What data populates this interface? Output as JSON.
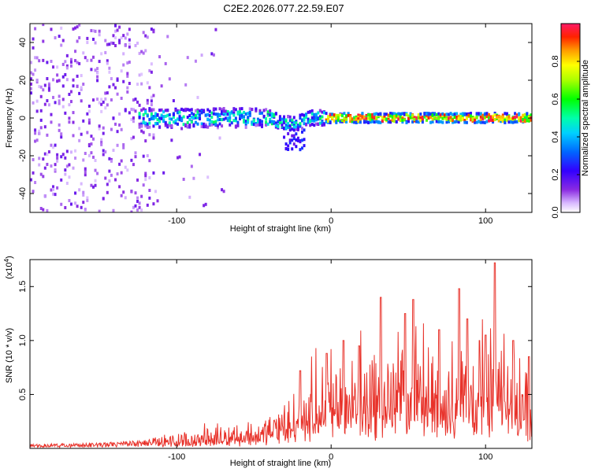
{
  "title": "C2E2.2026.077.22.59.E07",
  "chart_data": [
    {
      "type": "heatmap",
      "name": "spectrogram",
      "xlabel": "Height of straight line (km)",
      "ylabel": "Frequency (Hz)",
      "xlim": [
        -195,
        130
      ],
      "ylim": [
        -50,
        50
      ],
      "xticks": [
        -100,
        0,
        100
      ],
      "xtick_labels": [
        "-100",
        "0",
        "100"
      ],
      "yticks": [
        -40,
        -20,
        0,
        20,
        40
      ],
      "ytick_labels": [
        "-40",
        "-20",
        "0",
        "20",
        "40"
      ],
      "colorbar": {
        "label": "Normalized spectral amplitude",
        "range": [
          0,
          1
        ],
        "ticks": [
          0.0,
          0.2,
          0.4,
          0.6,
          0.8
        ],
        "tick_labels": [
          "0.0",
          "0.2",
          "0.4",
          "0.6",
          "0.8"
        ],
        "colors": [
          "#ffffff",
          "#c9a2ff",
          "#8a2be2",
          "#5a00ff",
          "#0000ff",
          "#00bfff",
          "#00ffbf",
          "#00ff00",
          "#ffff00",
          "#ff8000",
          "#ff0000",
          "#ff1a66"
        ]
      },
      "signal_band": {
        "freq_center": 0,
        "onset_km": -115,
        "strong_onset_km": -5
      }
    },
    {
      "type": "line",
      "name": "snr",
      "xlabel": "Height of straight line (km)",
      "ylabel": "SNR (10 * v/v)",
      "multiplier_label": "(x10",
      "multiplier_exp": "4",
      "multiplier_close": ")",
      "xlim": [
        -195,
        130
      ],
      "ylim": [
        0,
        1.75
      ],
      "xticks": [
        -100,
        0,
        100
      ],
      "xtick_labels": [
        "-100",
        "0",
        "100"
      ],
      "yticks": [
        0.5,
        1.0,
        1.5
      ],
      "ytick_labels": [
        "0.5",
        "1.0",
        "1.5"
      ],
      "color": "#e8322a",
      "envelope": [
        [
          -195,
          0.04
        ],
        [
          -150,
          0.05
        ],
        [
          -120,
          0.08
        ],
        [
          -100,
          0.15
        ],
        [
          -80,
          0.2
        ],
        [
          -60,
          0.25
        ],
        [
          -45,
          0.3
        ],
        [
          -30,
          0.5
        ],
        [
          -20,
          0.6
        ],
        [
          -10,
          0.8
        ],
        [
          0,
          0.95
        ],
        [
          10,
          0.95
        ],
        [
          25,
          1.0
        ],
        [
          40,
          1.05
        ],
        [
          55,
          1.1
        ],
        [
          70,
          1.05
        ],
        [
          85,
          1.1
        ],
        [
          100,
          1.1
        ],
        [
          115,
          1.0
        ],
        [
          130,
          0.8
        ]
      ],
      "peaks": [
        [
          -20,
          0.72
        ],
        [
          -3,
          0.88
        ],
        [
          8,
          1.0
        ],
        [
          18,
          0.95
        ],
        [
          32,
          1.4
        ],
        [
          48,
          1.25
        ],
        [
          53,
          1.38
        ],
        [
          70,
          1.1
        ],
        [
          83,
          1.48
        ],
        [
          88,
          1.2
        ],
        [
          96,
          1.0
        ],
        [
          100,
          1.05
        ],
        [
          106,
          1.72
        ],
        [
          118,
          1.0
        ],
        [
          128,
          0.85
        ]
      ]
    }
  ]
}
